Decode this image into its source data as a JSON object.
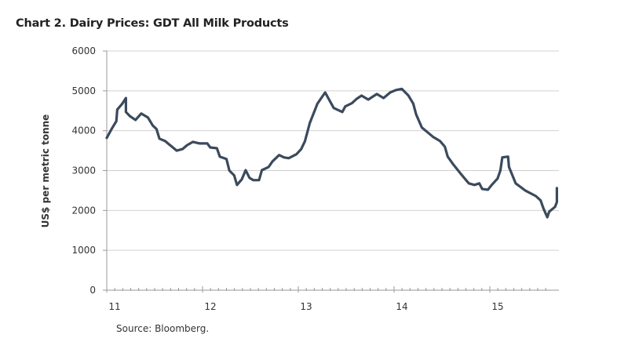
{
  "chart_data": {
    "type": "line",
    "title": "Chart 2.  Dairy Prices: GDT All Milk Products",
    "xlabel": "",
    "ylabel": "US$ per metric tonne",
    "ylim": [
      0,
      6000
    ],
    "xlim": [
      11,
      15.62
    ],
    "yticks": [
      "0",
      "1000",
      "2000",
      "3000",
      "4000",
      "5000",
      "6000"
    ],
    "xticks": [
      "11",
      "12",
      "13",
      "14",
      "15"
    ],
    "grid": true,
    "source": "Source: Bloomberg.",
    "line_color": "#3b4a5c",
    "series": [
      {
        "name": "GDT All Milk Products",
        "points": [
          [
            11.0,
            3820
          ],
          [
            11.05,
            4040
          ],
          [
            11.1,
            4240
          ],
          [
            11.11,
            4530
          ],
          [
            11.16,
            4670
          ],
          [
            11.2,
            4820
          ],
          [
            11.2,
            4470
          ],
          [
            11.24,
            4370
          ],
          [
            11.3,
            4270
          ],
          [
            11.36,
            4430
          ],
          [
            11.43,
            4330
          ],
          [
            11.48,
            4130
          ],
          [
            11.52,
            4040
          ],
          [
            11.55,
            3800
          ],
          [
            11.61,
            3740
          ],
          [
            11.65,
            3660
          ],
          [
            11.69,
            3580
          ],
          [
            11.73,
            3500
          ],
          [
            11.79,
            3540
          ],
          [
            11.84,
            3640
          ],
          [
            11.9,
            3720
          ],
          [
            11.97,
            3680
          ],
          [
            12.05,
            3680
          ],
          [
            12.08,
            3580
          ],
          [
            12.15,
            3560
          ],
          [
            12.18,
            3350
          ],
          [
            12.25,
            3290
          ],
          [
            12.28,
            3000
          ],
          [
            12.33,
            2880
          ],
          [
            12.36,
            2640
          ],
          [
            12.41,
            2780
          ],
          [
            12.45,
            3010
          ],
          [
            12.49,
            2820
          ],
          [
            12.53,
            2760
          ],
          [
            12.59,
            2760
          ],
          [
            12.62,
            3010
          ],
          [
            12.69,
            3090
          ],
          [
            12.73,
            3230
          ],
          [
            12.8,
            3390
          ],
          [
            12.85,
            3330
          ],
          [
            12.9,
            3310
          ],
          [
            12.98,
            3410
          ],
          [
            13.03,
            3540
          ],
          [
            13.07,
            3740
          ],
          [
            13.12,
            4190
          ],
          [
            13.2,
            4680
          ],
          [
            13.28,
            4960
          ],
          [
            13.37,
            4570
          ],
          [
            13.46,
            4470
          ],
          [
            13.49,
            4610
          ],
          [
            13.56,
            4690
          ],
          [
            13.61,
            4800
          ],
          [
            13.66,
            4880
          ],
          [
            13.73,
            4780
          ],
          [
            13.82,
            4920
          ],
          [
            13.89,
            4820
          ],
          [
            13.96,
            4960
          ],
          [
            14.02,
            5020
          ],
          [
            14.08,
            5050
          ],
          [
            14.15,
            4880
          ],
          [
            14.2,
            4680
          ],
          [
            14.23,
            4410
          ],
          [
            14.29,
            4080
          ],
          [
            14.36,
            3940
          ],
          [
            14.41,
            3840
          ],
          [
            14.48,
            3740
          ],
          [
            14.53,
            3600
          ],
          [
            14.56,
            3350
          ],
          [
            14.62,
            3150
          ],
          [
            14.7,
            2910
          ],
          [
            14.78,
            2680
          ],
          [
            14.84,
            2640
          ],
          [
            14.89,
            2680
          ],
          [
            14.92,
            2540
          ],
          [
            14.98,
            2520
          ],
          [
            15.02,
            2640
          ],
          [
            15.08,
            2800
          ],
          [
            15.11,
            3000
          ],
          [
            15.13,
            3330
          ],
          [
            15.19,
            3350
          ],
          [
            15.2,
            3090
          ],
          [
            15.27,
            2680
          ],
          [
            15.37,
            2500
          ],
          [
            15.48,
            2360
          ],
          [
            15.53,
            2250
          ],
          [
            15.56,
            2050
          ],
          [
            15.6,
            1830
          ],
          [
            15.62,
            1970
          ],
          [
            15.68,
            2090
          ],
          [
            15.7,
            2210
          ],
          [
            15.7,
            2560
          ]
        ]
      }
    ]
  }
}
